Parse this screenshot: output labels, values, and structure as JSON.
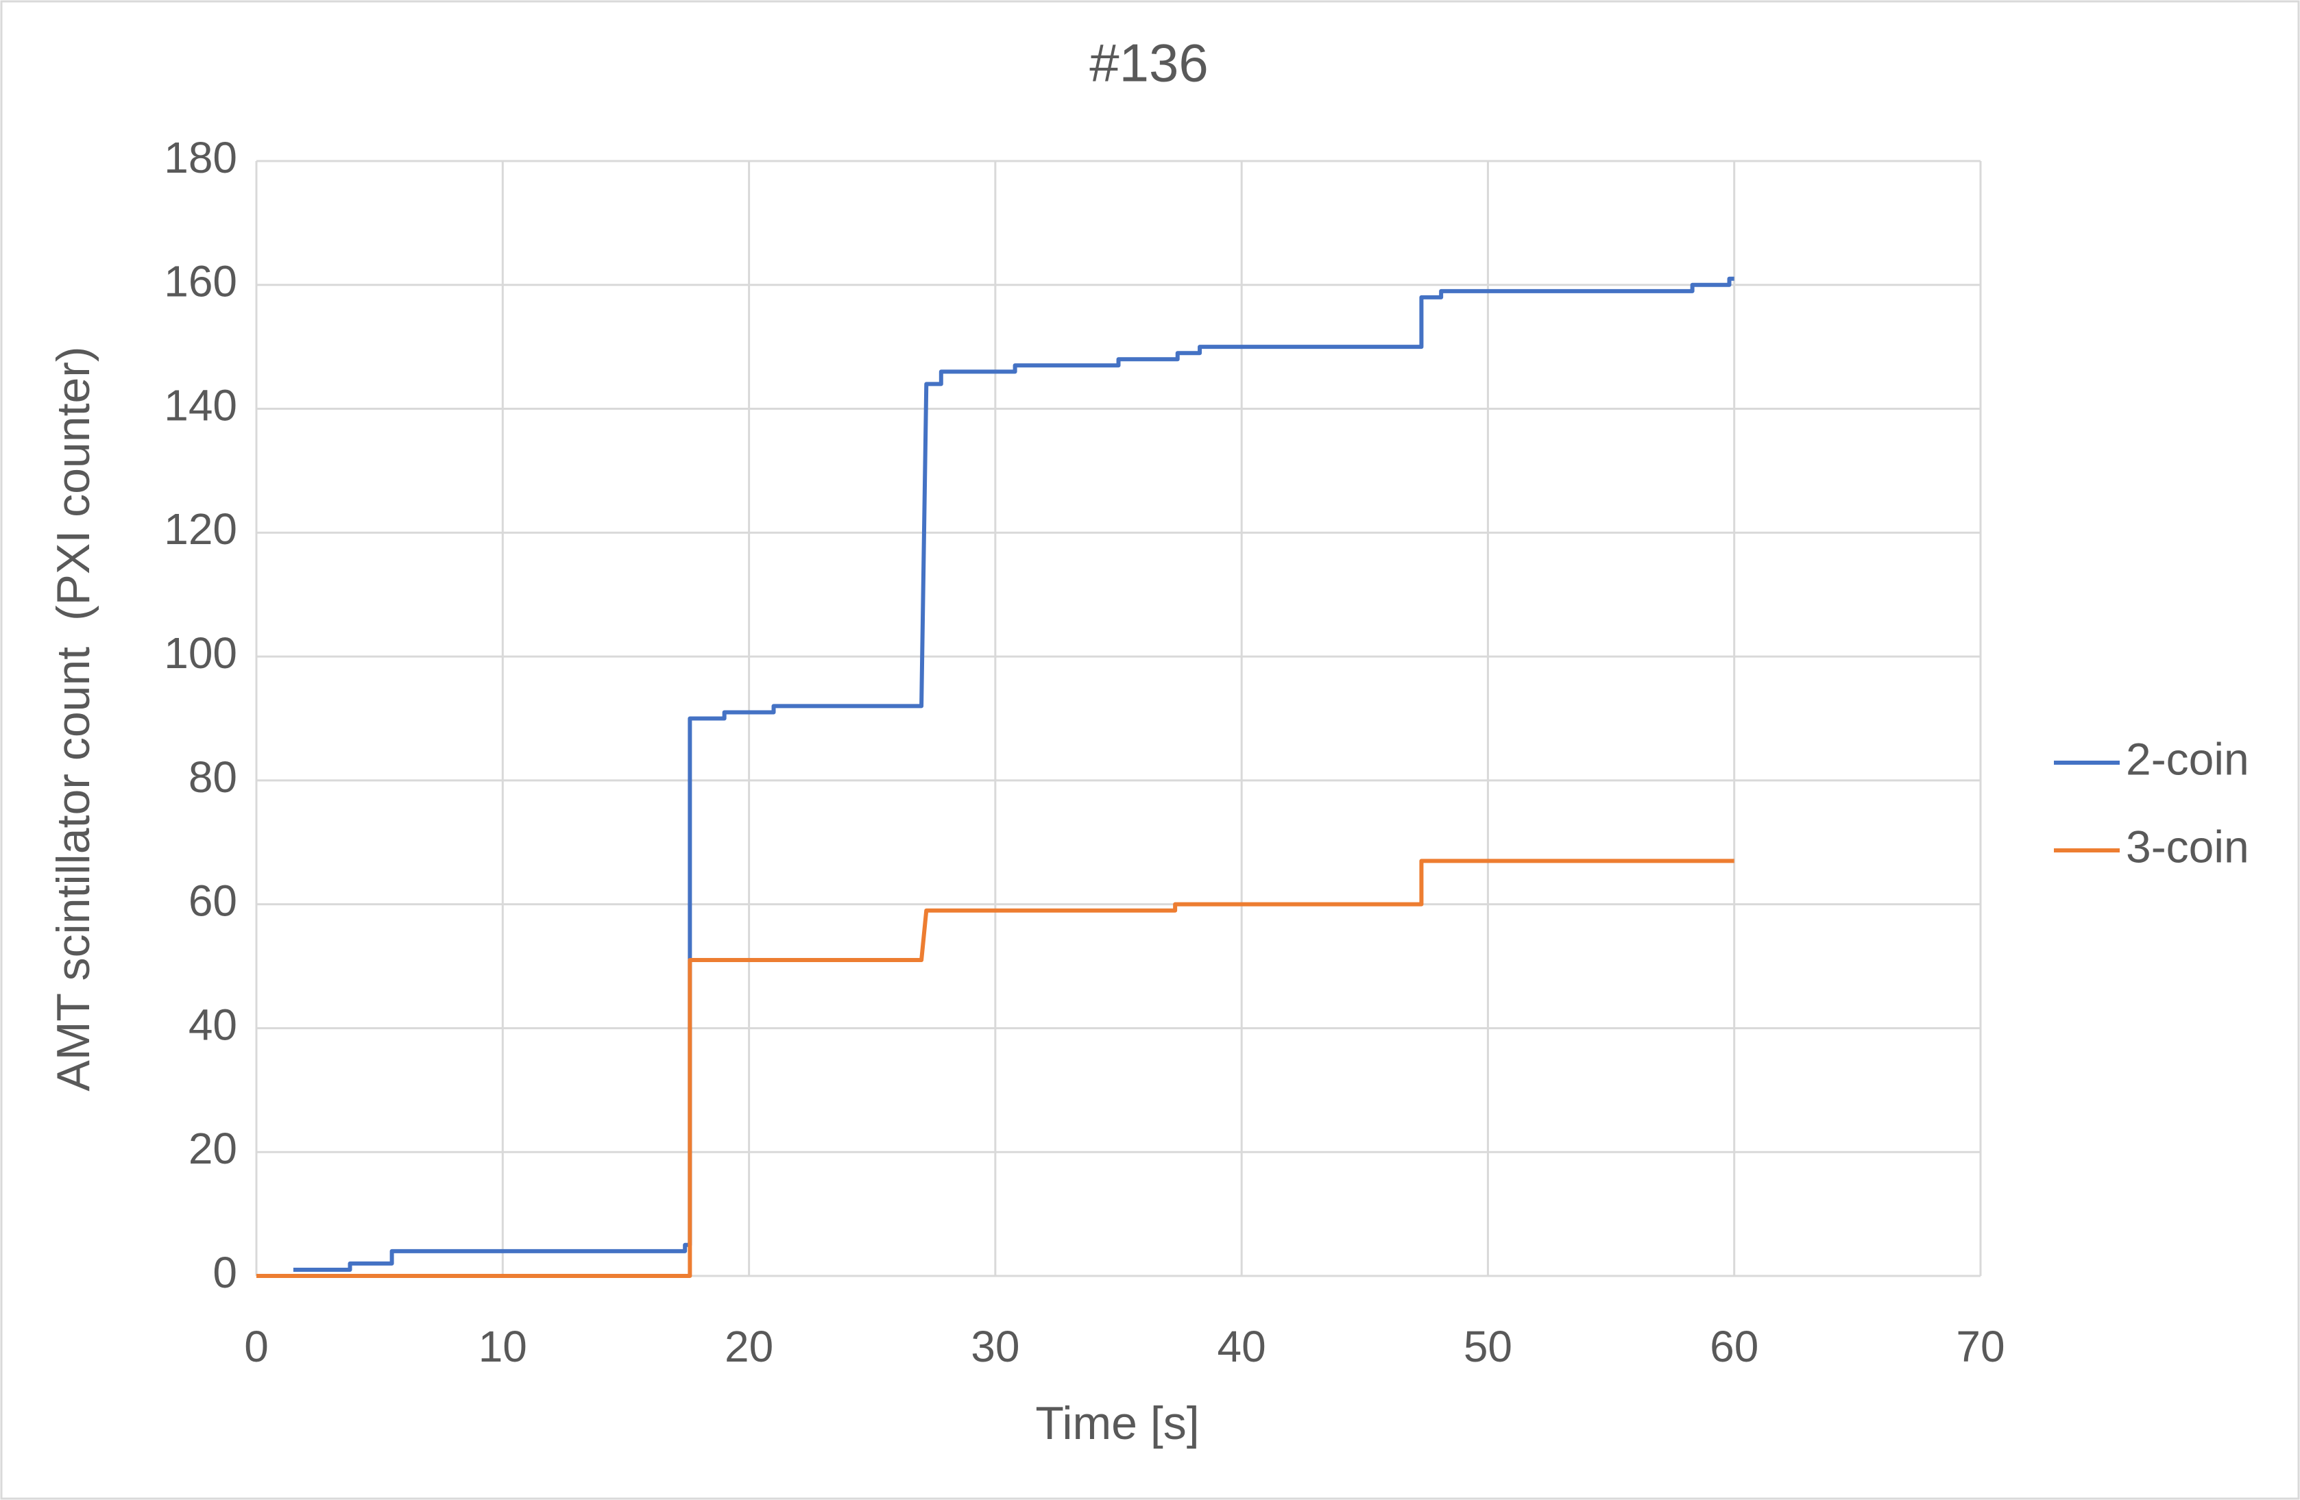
{
  "chart_data": {
    "type": "line",
    "title": "#136",
    "xlabel": "Time [s]",
    "ylabel": "AMT scintillator count  (PXI counter)",
    "xlim": [
      0,
      70
    ],
    "xticks": [
      0,
      10,
      20,
      30,
      40,
      50,
      60,
      70
    ],
    "ylim": [
      0,
      180
    ],
    "yticks": [
      0,
      20,
      40,
      60,
      80,
      100,
      120,
      140,
      160,
      180
    ],
    "grid": true,
    "legend": "right",
    "series": [
      {
        "name": "2-coin",
        "color": "#4472c4",
        "x": [
          1.5,
          3.8,
          3.8,
          5.5,
          5.5,
          17.4,
          17.4,
          17.6,
          17.6,
          19,
          19,
          21,
          21,
          27,
          27.2,
          27.8,
          27.8,
          30.8,
          30.8,
          35,
          35,
          37.4,
          37.4,
          38.3,
          38.3,
          47.3,
          47.3,
          48.1,
          48.1,
          58.3,
          58.3,
          59.8,
          59.8,
          60
        ],
        "values": [
          1,
          1,
          2,
          2,
          4,
          4,
          5,
          5,
          90,
          90,
          91,
          91,
          92,
          92,
          144,
          144,
          146,
          146,
          147,
          147,
          148,
          148,
          149,
          149,
          150,
          150,
          158,
          158,
          159,
          159,
          160,
          160,
          161,
          161
        ]
      },
      {
        "name": "3-coin",
        "color": "#ed7d31",
        "x": [
          0,
          17.6,
          17.6,
          27,
          27.2,
          37.3,
          37.3,
          47.3,
          47.3,
          60
        ],
        "values": [
          0,
          0,
          51,
          51,
          59,
          59,
          60,
          60,
          67,
          67
        ]
      }
    ]
  }
}
